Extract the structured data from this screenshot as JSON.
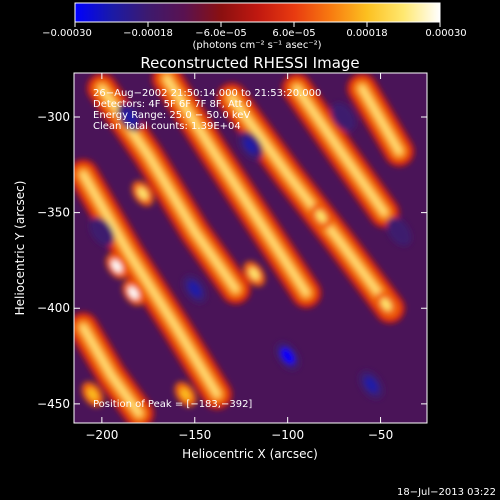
{
  "chart_data": {
    "type": "heatmap",
    "title": "Reconstructed RHESSI Image",
    "xlabel": "Heliocentric X (arcsec)",
    "ylabel": "Heliocentric Y (arcsec)",
    "xlim": [
      -215,
      -25
    ],
    "ylim": [
      -460,
      -277
    ],
    "x_ticks": [
      -200,
      -150,
      -100,
      -50
    ],
    "y_ticks": [
      -300,
      -350,
      -400,
      -450
    ],
    "x_tick_labels": [
      "−200",
      "−150",
      "−100",
      "−50"
    ],
    "y_tick_labels": [
      "−300",
      "−350",
      "−400",
      "−450"
    ],
    "colorbar": {
      "range": [
        -0.0003,
        0.0003
      ],
      "ticks": [
        -0.0003,
        -0.00018,
        -6e-05,
        6e-05,
        0.00018,
        0.0003
      ],
      "tick_labels": [
        "−0.00030",
        "−0.00018",
        "−6.0e−05",
        "6.0e−05",
        "0.00018",
        "0.00030"
      ],
      "unit_label": "(photons cm⁻² s⁻¹ asec⁻²)",
      "colormap": [
        "#0000ff",
        "#1a1aa8",
        "#3d1a6e",
        "#5a1250",
        "#8a1010",
        "#c01810",
        "#e83a10",
        "#f87a10",
        "#fcc020",
        "#ffe870",
        "#ffffff"
      ]
    },
    "annotations": [
      "26−Aug−2002 21:50:14.000 to 21:53:20.000",
      "Detectors: 4F 5F 6F 7F 8F, Att 0",
      "Energy Range: 25.0 − 50.0 keV",
      "Clean     Total counts: 1.39E+04"
    ],
    "peak_label": "Position of Peak = [−183,−392]",
    "peak_position": [
      -183,
      -392
    ],
    "bright_ridges": [
      {
        "points": [
          [
            -200,
            -285
          ],
          [
            -175,
            -320
          ],
          [
            -150,
            -360
          ],
          [
            -128,
            -390
          ]
        ]
      },
      {
        "points": [
          [
            -165,
            -280
          ],
          [
            -140,
            -318
          ],
          [
            -115,
            -355
          ],
          [
            -90,
            -392
          ]
        ]
      },
      {
        "points": [
          [
            -130,
            -290
          ],
          [
            -100,
            -330
          ],
          [
            -72,
            -365
          ],
          [
            -45,
            -400
          ]
        ]
      },
      {
        "points": [
          [
            -210,
            -330
          ],
          [
            -185,
            -372
          ],
          [
            -160,
            -410
          ],
          [
            -138,
            -445
          ]
        ]
      },
      {
        "points": [
          [
            -95,
            -285
          ],
          [
            -70,
            -320
          ],
          [
            -48,
            -350
          ]
        ]
      },
      {
        "points": [
          [
            -210,
            -410
          ],
          [
            -195,
            -435
          ],
          [
            -180,
            -455
          ]
        ]
      },
      {
        "points": [
          [
            -60,
            -285
          ],
          [
            -40,
            -318
          ]
        ]
      }
    ],
    "bright_spots": [
      {
        "pos": [
          -192,
          -378
        ],
        "value": 0.0003
      },
      {
        "pos": [
          -183,
          -392
        ],
        "value": 0.0003
      },
      {
        "pos": [
          -178,
          -340
        ],
        "value": 0.00024
      },
      {
        "pos": [
          -118,
          -382
        ],
        "value": 0.00024
      },
      {
        "pos": [
          -82,
          -352
        ],
        "value": 0.00022
      },
      {
        "pos": [
          -47,
          -398
        ],
        "value": 0.00022
      },
      {
        "pos": [
          -155,
          -445
        ],
        "value": 0.0002
      },
      {
        "pos": [
          -205,
          -445
        ],
        "value": 0.00018
      }
    ],
    "dark_spots": [
      {
        "pos": [
          -185,
          -300
        ],
        "value": -0.00022
      },
      {
        "pos": [
          -120,
          -315
        ],
        "value": -0.00024
      },
      {
        "pos": [
          -70,
          -300
        ],
        "value": -0.0002
      },
      {
        "pos": [
          -150,
          -390
        ],
        "value": -0.00024
      },
      {
        "pos": [
          -100,
          -425
        ],
        "value": -0.00028
      },
      {
        "pos": [
          -55,
          -440
        ],
        "value": -0.00022
      },
      {
        "pos": [
          -200,
          -360
        ],
        "value": -0.00018
      },
      {
        "pos": [
          -40,
          -360
        ],
        "value": -0.0002
      }
    ]
  },
  "footer": {
    "timestamp": "18−Jul−2013 03:22"
  }
}
